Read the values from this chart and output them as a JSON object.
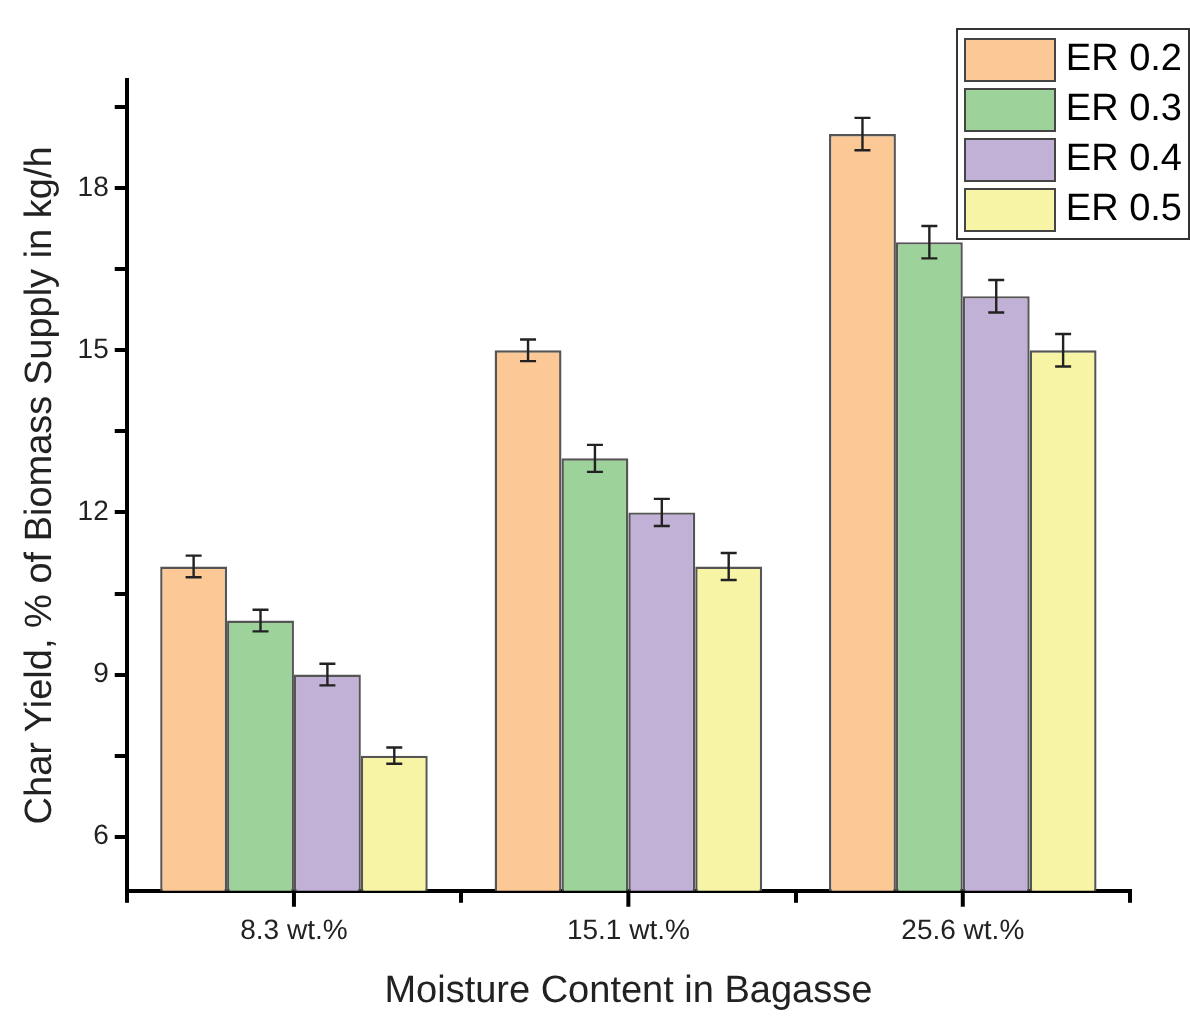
{
  "chart_data": {
    "type": "bar",
    "xlabel": "Moisture Content in Bagasse",
    "ylabel": "Char Yield, % of Biomass Supply in kg/h",
    "categories": [
      "8.3 wt.%",
      "15.1 wt.%",
      "25.6 wt.%"
    ],
    "series": [
      {
        "name": "ER 0.2",
        "color": "#fbc896",
        "values": [
          11,
          15,
          19
        ],
        "errors": [
          0.2,
          0.2,
          0.3
        ]
      },
      {
        "name": "ER 0.3",
        "color": "#9dd39b",
        "values": [
          10,
          13,
          17
        ],
        "errors": [
          0.2,
          0.25,
          0.3
        ]
      },
      {
        "name": "ER 0.4",
        "color": "#c1b1d6",
        "values": [
          9,
          12,
          16
        ],
        "errors": [
          0.2,
          0.25,
          0.3
        ]
      },
      {
        "name": "ER 0.5",
        "color": "#f8f4a6",
        "values": [
          7.5,
          11,
          15
        ],
        "errors": [
          0.15,
          0.25,
          0.3
        ]
      }
    ],
    "ylim": [
      5,
      20
    ],
    "yticks": [
      6,
      {
        "value": 7.5,
        "label": null
      },
      9,
      {
        "value": 10.5,
        "label": null
      },
      12,
      {
        "value": 13.5,
        "label": null
      },
      15,
      {
        "value": 16.5,
        "label": null
      },
      18,
      {
        "value": 19.5,
        "label": null
      }
    ],
    "grid": false,
    "legend": "top right"
  }
}
